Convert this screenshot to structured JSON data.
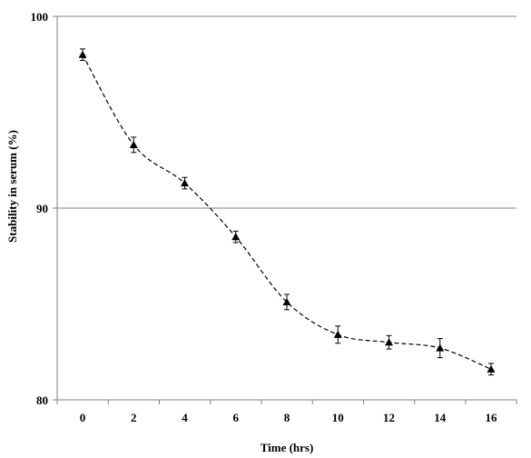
{
  "chart_data": {
    "type": "line",
    "title": "",
    "xlabel": "Time (hrs)",
    "ylabel": "Stability in serum   (%)",
    "x": [
      0,
      2,
      4,
      6,
      8,
      10,
      12,
      14,
      16
    ],
    "xticks": [
      "0",
      "2",
      "4",
      "6",
      "8",
      "10",
      "12",
      "14",
      "16"
    ],
    "yticks": [
      "80",
      "90",
      "100"
    ],
    "ylim": [
      80,
      100
    ],
    "grid": "horizontal",
    "series": [
      {
        "values": [
          98.0,
          93.3,
          91.3,
          88.5,
          85.1,
          83.4,
          83.0,
          82.7,
          81.6
        ],
        "errors": [
          0.3,
          0.4,
          0.3,
          0.3,
          0.4,
          0.45,
          0.35,
          0.5,
          0.3
        ],
        "line_style": "dashed",
        "marker": "triangle",
        "color": "#000000"
      }
    ]
  }
}
